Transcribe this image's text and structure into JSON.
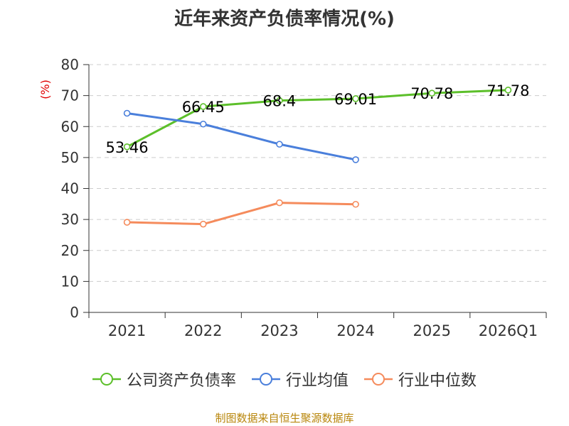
{
  "title": "近年来资产负债率情况(%)",
  "source": "制图数据来自恒生聚源数据库",
  "chart_data": {
    "type": "line",
    "title": "近年来资产负债率情况(%)",
    "ylabel": "(%)",
    "xlabel": "",
    "ylim": [
      0,
      80
    ],
    "yticks": [
      0,
      10,
      20,
      30,
      40,
      50,
      60,
      70,
      80
    ],
    "categories": [
      "2021",
      "2022",
      "2023",
      "2024",
      "2025",
      "2026Q1"
    ],
    "grid": true,
    "legend_position": "bottom",
    "series": [
      {
        "name": "公司资产负债率",
        "color": "#5cbf2a",
        "values": [
          53.46,
          66.45,
          68.4,
          69.01,
          70.78,
          71.78
        ],
        "labels": [
          "53.46",
          "66.45",
          "68.4",
          "69.01",
          "70.78",
          "71.78"
        ]
      },
      {
        "name": "行业均值",
        "color": "#4a7fdb",
        "values": [
          64.3,
          60.8,
          54.3,
          49.3,
          null,
          null
        ]
      },
      {
        "name": "行业中位数",
        "color": "#f58b5c",
        "values": [
          29.1,
          28.5,
          35.4,
          34.9,
          null,
          null
        ]
      }
    ]
  }
}
